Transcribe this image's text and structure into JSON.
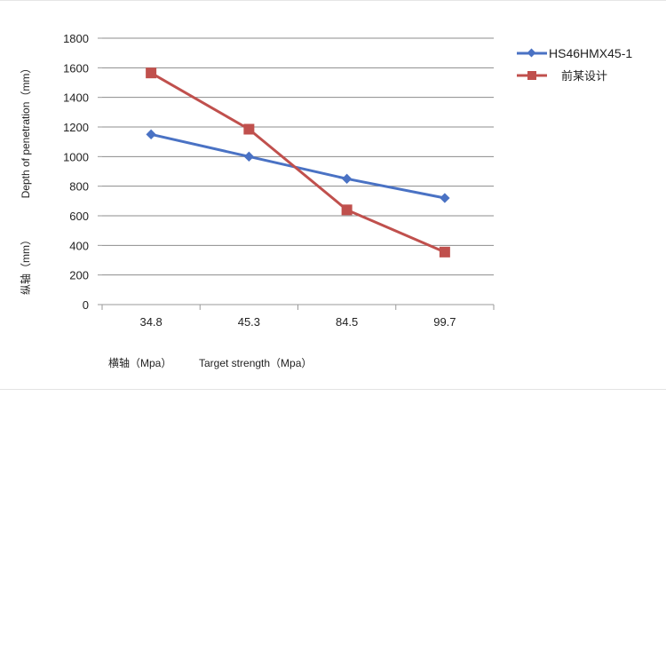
{
  "chart_data": {
    "type": "line",
    "categories": [
      "34.8",
      "45.3",
      "84.5",
      "99.7"
    ],
    "series": [
      {
        "name": "HS46HMX45-1",
        "values": [
          1150,
          1000,
          850,
          720
        ],
        "color": "#4a72c4",
        "marker": "diamond"
      },
      {
        "name": "前某设计",
        "values": [
          1565,
          1185,
          640,
          355
        ],
        "color": "#c0504d",
        "marker": "square"
      }
    ],
    "yticks": [
      "0",
      "200",
      "400",
      "600",
      "800",
      "1000",
      "1200",
      "1400",
      "1600",
      "1800"
    ],
    "ylim": [
      0,
      1800
    ],
    "ylabel_en": "Depth of penetration（mm）",
    "ylabel_cn": "纵轴（mm）",
    "xlabel_cn": "横轴（Mpa）",
    "xlabel_en": "Target strength（Mpa）",
    "grid": true,
    "legend_position": "right"
  }
}
